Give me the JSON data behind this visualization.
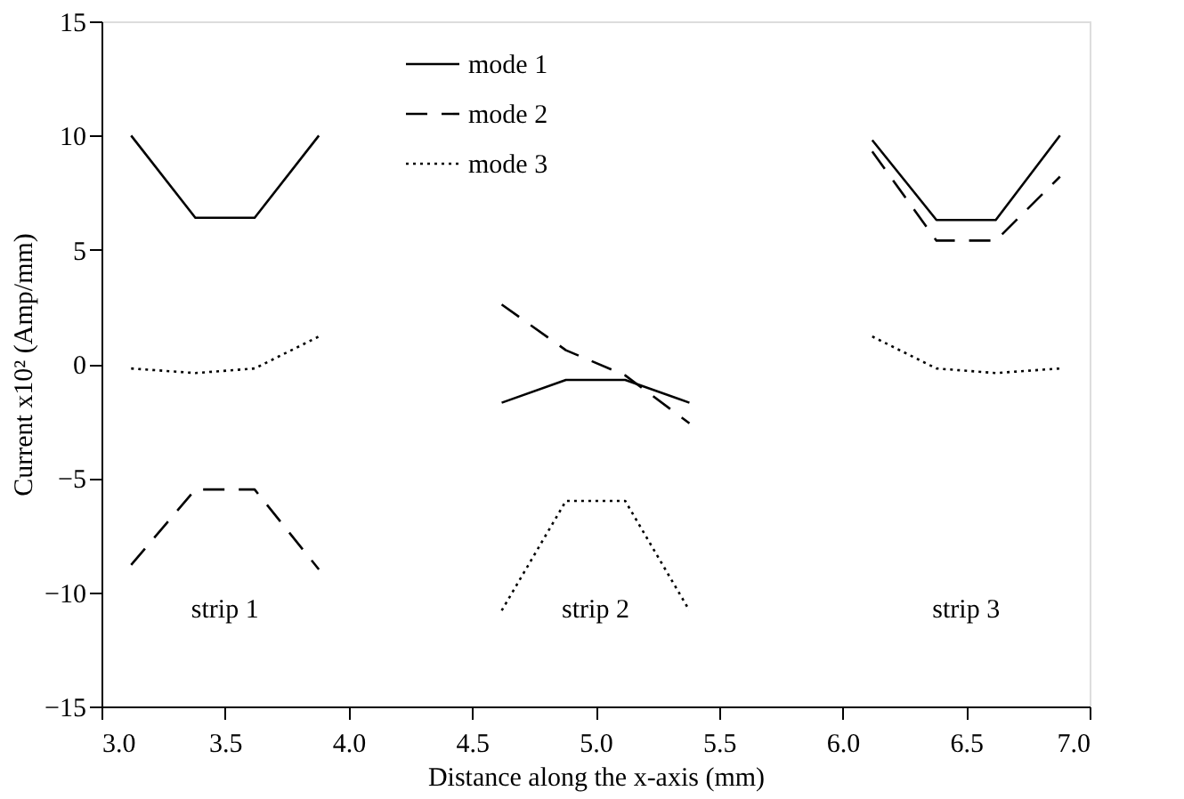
{
  "chart_data": {
    "type": "line",
    "xlabel": "Distance along the x-axis (mm)",
    "ylabel": "Current x10² (Amp/mm)",
    "x": [
      3.12,
      3.38,
      3.62,
      3.88,
      4.25,
      4.62,
      4.88,
      5.12,
      5.38,
      5.75,
      6.12,
      6.38,
      6.62,
      6.88
    ],
    "series": [
      {
        "name": "mode 1",
        "color": "#000000",
        "line_style": "solid",
        "values": [
          10,
          6.4,
          6.4,
          10,
          null,
          -1.7,
          -0.7,
          -0.7,
          -1.7,
          null,
          9.8,
          6.3,
          6.3,
          10
        ]
      },
      {
        "name": "mode 2",
        "color": "#000000",
        "line_style": "dashed",
        "values": [
          -8.8,
          -5.5,
          -5.5,
          -9,
          null,
          2.6,
          0.6,
          -0.5,
          -2.6,
          null,
          9.3,
          5.4,
          5.4,
          8.2
        ]
      },
      {
        "name": "mode 3",
        "color": "#000000",
        "line_style": "dotted",
        "values": [
          -0.2,
          -0.4,
          -0.2,
          1.2,
          null,
          -10.8,
          -6,
          -6,
          -10.8,
          null,
          1.2,
          -0.2,
          -0.4,
          -0.2
        ]
      }
    ],
    "annotations": [
      "strip 1",
      "strip 2",
      "strip 3"
    ],
    "xlim": [
      3.0,
      7.0
    ],
    "xticks": [
      {
        "value": 3,
        "label": "3.0"
      },
      3.5,
      {
        "value": 4,
        "label": "4.0"
      },
      4.5,
      {
        "value": 5,
        "label": "5.0"
      },
      5.5,
      {
        "value": 6,
        "label": "6.0"
      },
      6.5,
      {
        "value": 7,
        "label": "7.0"
      }
    ],
    "ylim": [
      -15,
      15
    ],
    "yticks": [
      -15,
      -10,
      -5,
      0,
      5,
      10,
      15
    ],
    "grid": false,
    "legend": "top",
    "marker": "none"
  }
}
